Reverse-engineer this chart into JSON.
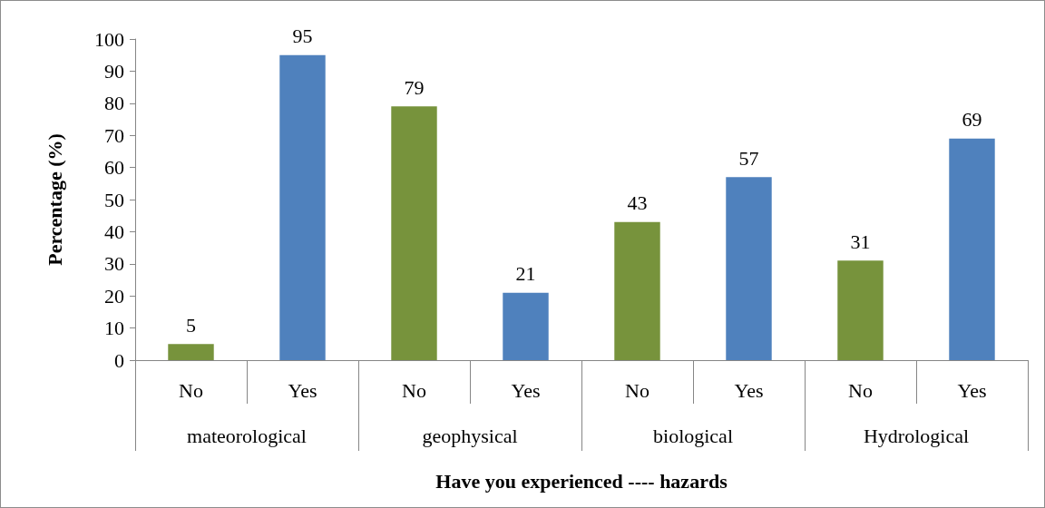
{
  "chart_data": {
    "type": "bar",
    "xlabel": "Have you experienced ---- hazards",
    "ylabel": "Percentage (%)",
    "categories": [
      "No",
      "Yes",
      "No",
      "Yes",
      "No",
      "Yes",
      "No",
      "Yes"
    ],
    "values": [
      5,
      95,
      79,
      21,
      43,
      57,
      31,
      69
    ],
    "colors": [
      "#77933c",
      "#4f81bd",
      "#77933c",
      "#4f81bd",
      "#77933c",
      "#4f81bd",
      "#77933c",
      "#4f81bd"
    ],
    "annotations": [
      "mateorological",
      "geophysical",
      "biological",
      "Hydrological"
    ],
    "ylim": [
      0,
      100
    ],
    "yticks": [
      0,
      10,
      20,
      30,
      40,
      50,
      60,
      70,
      80,
      90,
      100
    ],
    "grid": false,
    "data_labels": true
  }
}
